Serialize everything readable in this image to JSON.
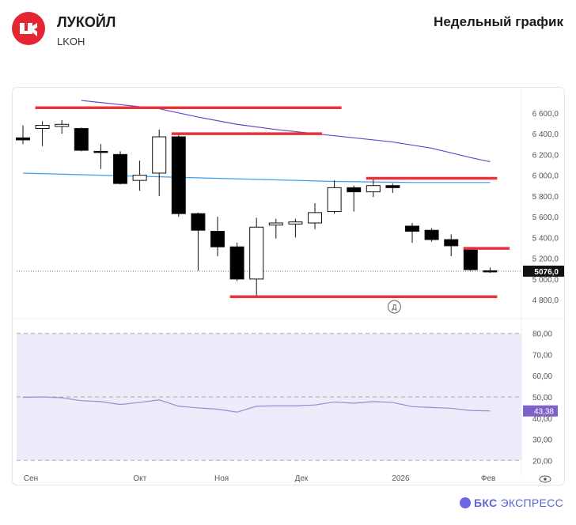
{
  "header": {
    "company": "ЛУКОЙЛ",
    "ticker": "LKOH",
    "chart_title": "Недельный график",
    "brand_name": "БКС",
    "brand_suffix": "ЭКСПРЕСС",
    "logo_icon": "lukoil-logo-icon",
    "brand_icon": "bks-sphere-icon"
  },
  "colors": {
    "accent": "#e3262f",
    "candle_up_fill": "#ffffff",
    "candle_down_fill": "#000000",
    "ma_long": "#6f43c8",
    "ma_short": "#3b9fe8",
    "level_lines": "#e8333c",
    "rsi": "#9a8ccf",
    "rsi_band": "#efeaf9"
  },
  "chart_data": [
    {
      "type": "candlestick",
      "x_labels": [
        "Сен",
        "Окт",
        "Ноя",
        "Дек",
        "2026",
        "Фев"
      ],
      "y_ticks": [
        "6 600,0",
        "6 400,0",
        "6 200,0",
        "6 000,0",
        "5 800,0",
        "5 600,0",
        "5 400,0",
        "5 200,0",
        "5 000,0",
        "4 800,0"
      ],
      "ylim": [
        4710,
        6690
      ],
      "last_price": 5076,
      "last_price_label": "5076,0",
      "marker_label": "Д",
      "candles": [
        {
          "o": 6360,
          "h": 6480,
          "l": 6300,
          "c": 6340
        },
        {
          "o": 6450,
          "h": 6520,
          "l": 6280,
          "c": 6480
        },
        {
          "o": 6470,
          "h": 6530,
          "l": 6400,
          "c": 6490
        },
        {
          "o": 6450,
          "h": 6460,
          "l": 6230,
          "c": 6240
        },
        {
          "o": 6230,
          "h": 6300,
          "l": 6060,
          "c": 6220
        },
        {
          "o": 6200,
          "h": 6230,
          "l": 5910,
          "c": 5920
        },
        {
          "o": 5950,
          "h": 6140,
          "l": 5850,
          "c": 6000
        },
        {
          "o": 6020,
          "h": 6440,
          "l": 5800,
          "c": 6370
        },
        {
          "o": 6370,
          "h": 6390,
          "l": 5600,
          "c": 5630
        },
        {
          "o": 5630,
          "h": 5640,
          "l": 5080,
          "c": 5470
        },
        {
          "o": 5460,
          "h": 5600,
          "l": 5220,
          "c": 5310
        },
        {
          "o": 5310,
          "h": 5350,
          "l": 4980,
          "c": 5000
        },
        {
          "o": 5000,
          "h": 5590,
          "l": 4820,
          "c": 5500
        },
        {
          "o": 5520,
          "h": 5580,
          "l": 5390,
          "c": 5540
        },
        {
          "o": 5530,
          "h": 5580,
          "l": 5400,
          "c": 5550
        },
        {
          "o": 5540,
          "h": 5730,
          "l": 5480,
          "c": 5640
        },
        {
          "o": 5650,
          "h": 5950,
          "l": 5630,
          "c": 5880
        },
        {
          "o": 5880,
          "h": 5900,
          "l": 5650,
          "c": 5840
        },
        {
          "o": 5840,
          "h": 5970,
          "l": 5790,
          "c": 5900
        },
        {
          "o": 5900,
          "h": 5920,
          "l": 5830,
          "c": 5880
        },
        {
          "o": 5510,
          "h": 5540,
          "l": 5350,
          "c": 5460
        },
        {
          "o": 5470,
          "h": 5490,
          "l": 5360,
          "c": 5380
        },
        {
          "o": 5380,
          "h": 5430,
          "l": 5220,
          "c": 5320
        },
        {
          "o": 5300,
          "h": 5310,
          "l": 5080,
          "c": 5090
        },
        {
          "o": 5080,
          "h": 5110,
          "l": 5060,
          "c": 5076
        }
      ],
      "ma_long": [
        {
          "i": 3,
          "v": 6720
        },
        {
          "i": 5,
          "v": 6680
        },
        {
          "i": 7,
          "v": 6640
        },
        {
          "i": 9,
          "v": 6560
        },
        {
          "i": 11,
          "v": 6490
        },
        {
          "i": 13,
          "v": 6440
        },
        {
          "i": 15,
          "v": 6400
        },
        {
          "i": 17,
          "v": 6360
        },
        {
          "i": 19,
          "v": 6320
        },
        {
          "i": 21,
          "v": 6260
        },
        {
          "i": 23,
          "v": 6170
        },
        {
          "i": 24,
          "v": 6130
        }
      ],
      "ma_short": [
        {
          "i": 0,
          "v": 6020
        },
        {
          "i": 4,
          "v": 6000
        },
        {
          "i": 8,
          "v": 5980
        },
        {
          "i": 12,
          "v": 5960
        },
        {
          "i": 16,
          "v": 5940
        },
        {
          "i": 20,
          "v": 5930
        },
        {
          "i": 24,
          "v": 5930
        }
      ],
      "levels": [
        {
          "from": 1,
          "to": 16,
          "v": 6650
        },
        {
          "from": 8,
          "to": 15,
          "v": 6400
        },
        {
          "from": 18,
          "to": 24,
          "v": 5970
        },
        {
          "from": 23,
          "to": 25,
          "v": 5295
        },
        {
          "from": 11,
          "to": 24,
          "v": 4830
        }
      ]
    },
    {
      "type": "line",
      "name": "RSI",
      "y_ticks": [
        "80,00",
        "70,00",
        "60,00",
        "50,00",
        "40,00",
        "30,00",
        "20,00"
      ],
      "ylim": [
        16,
        84
      ],
      "band": [
        20,
        80
      ],
      "mid": 50,
      "last_label": "43,38",
      "values": [
        49.8,
        50.0,
        49.6,
        48.2,
        47.8,
        46.4,
        47.4,
        48.6,
        45.6,
        44.8,
        44.2,
        42.8,
        45.6,
        45.8,
        45.8,
        46.2,
        47.6,
        47.0,
        47.8,
        47.4,
        45.4,
        45.0,
        44.6,
        43.6,
        43.38
      ]
    }
  ]
}
